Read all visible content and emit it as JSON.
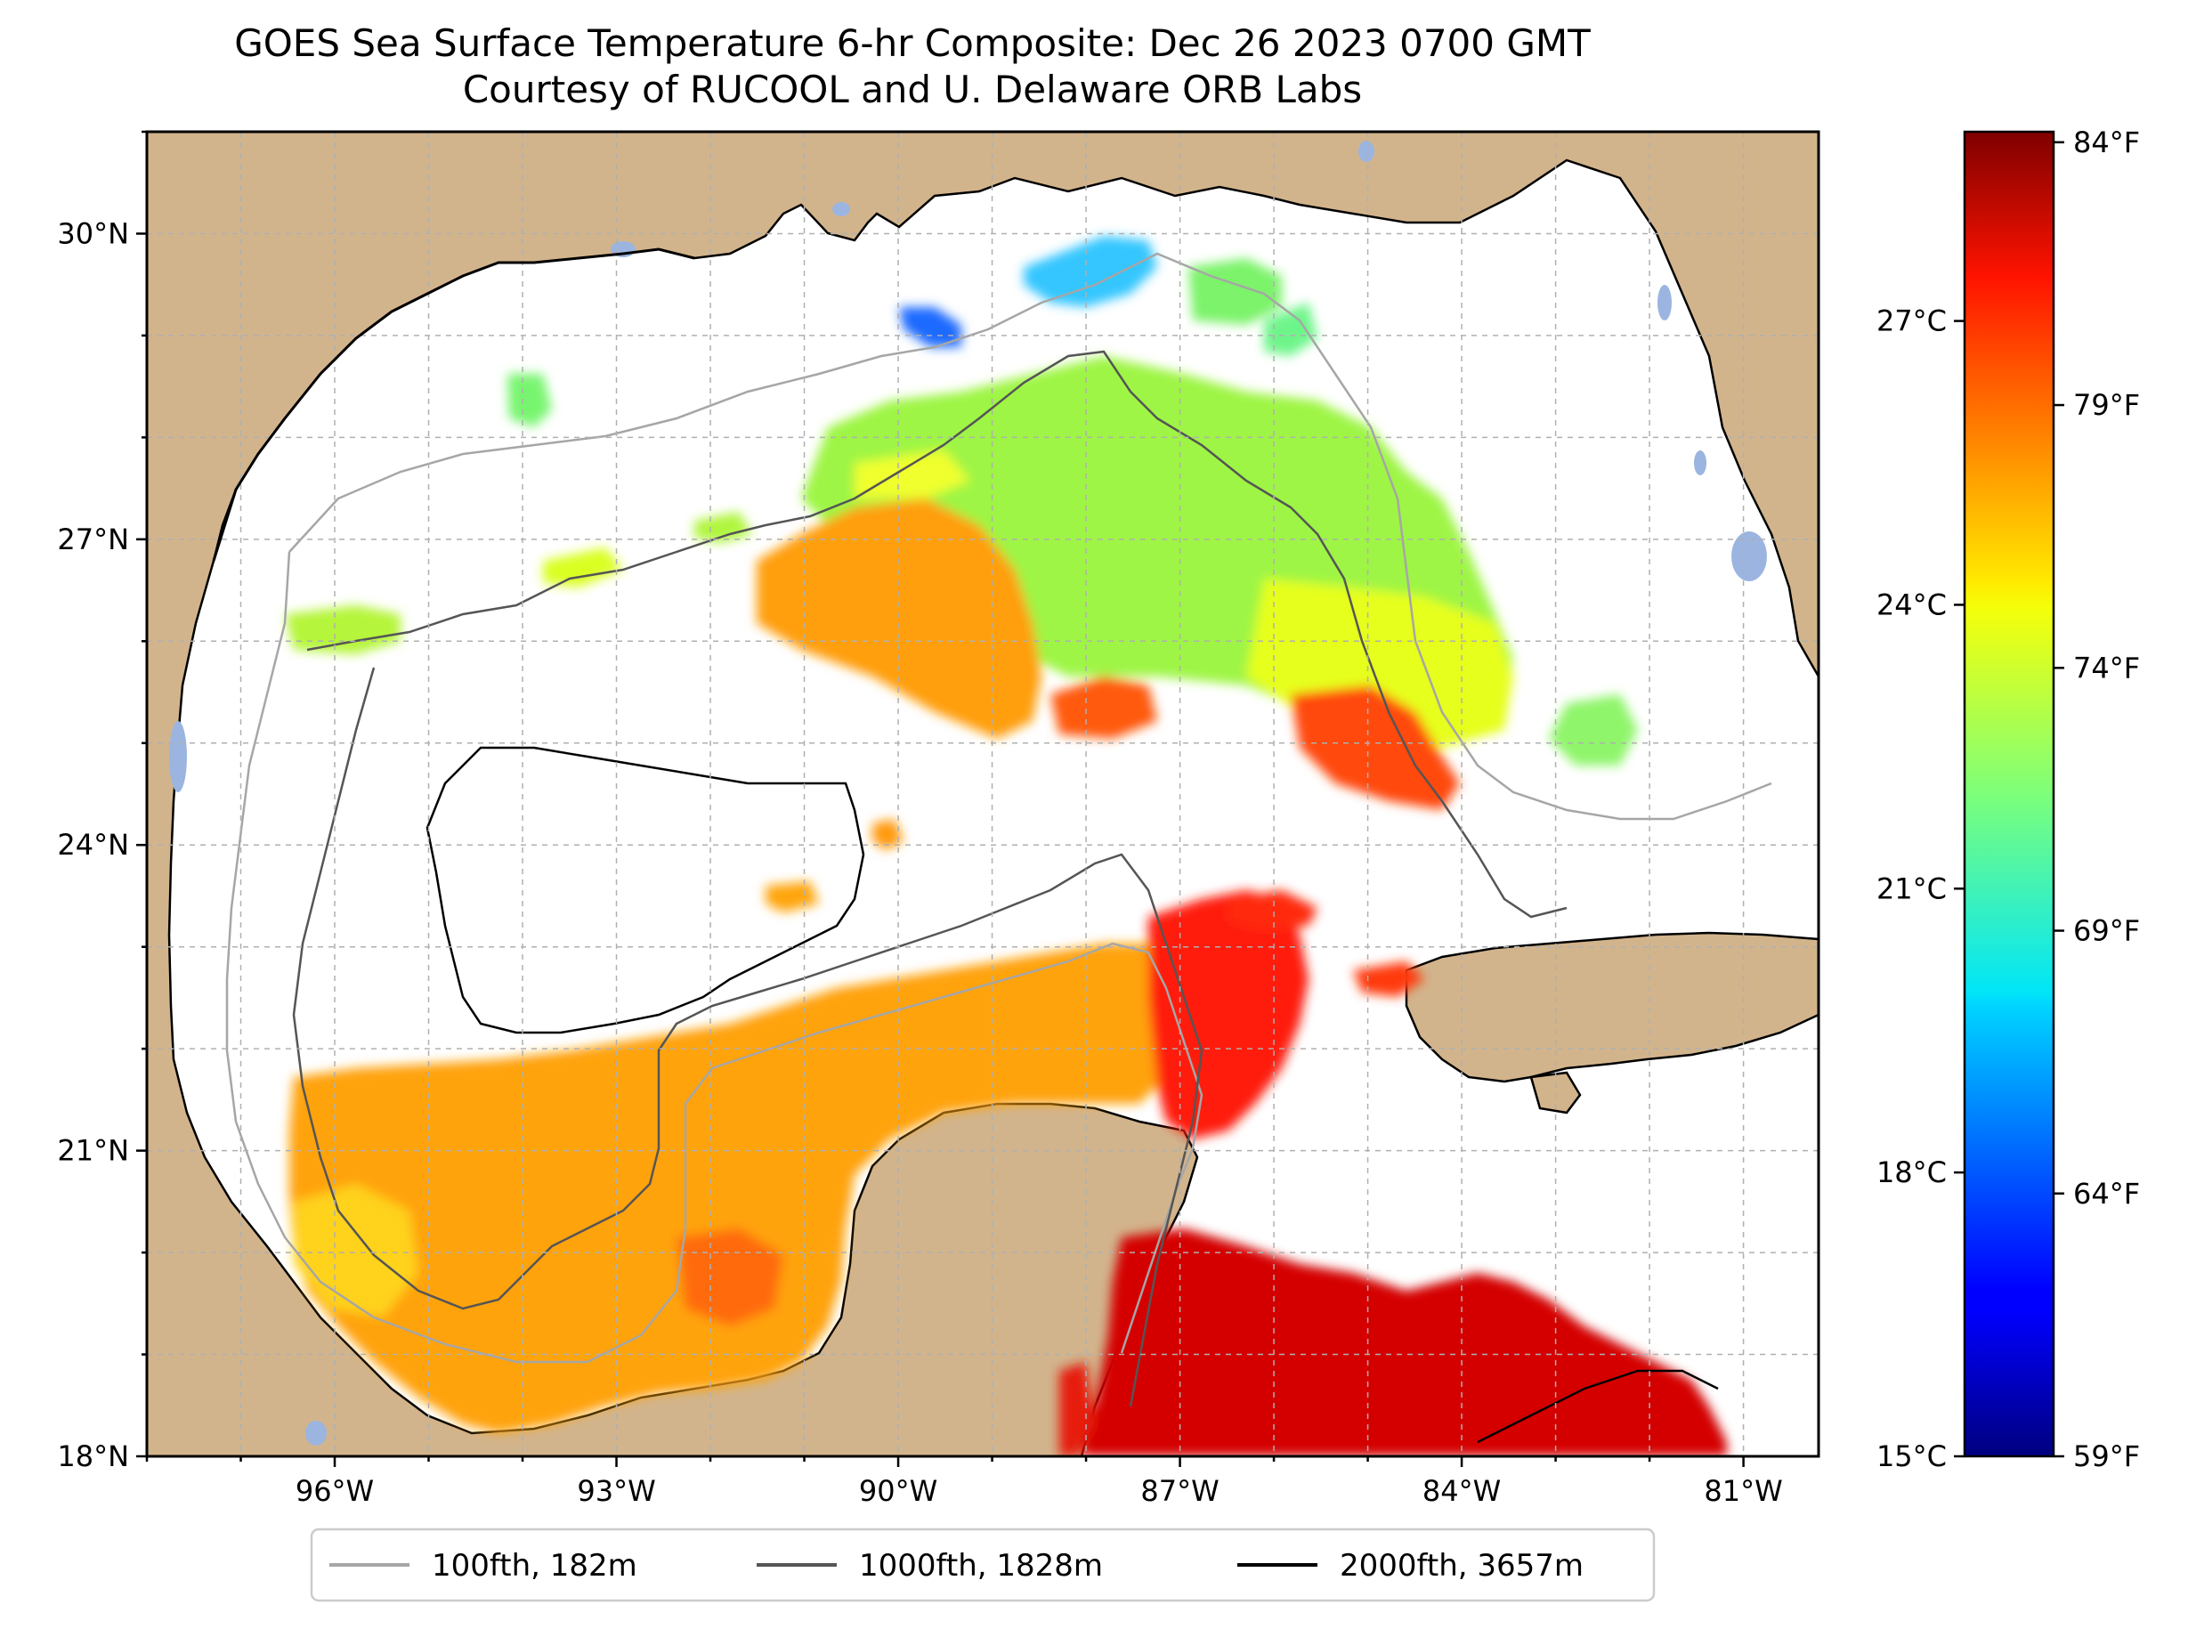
{
  "title": {
    "line1": "GOES Sea Surface Temperature 6-hr Composite: Dec 26 2023 0700 GMT",
    "line2": "Courtesy of RUCOOL and U. Delaware ORB Labs"
  },
  "chart_data": {
    "type": "heatmap",
    "map_extent": {
      "lon": [
        -98,
        -80.2
      ],
      "lat": [
        18,
        31
      ]
    },
    "lat_ticks": [
      {
        "value": 30,
        "label": "30°N"
      },
      {
        "value": 27,
        "label": "27°N"
      },
      {
        "value": 24,
        "label": "24°N"
      },
      {
        "value": 21,
        "label": "21°N"
      },
      {
        "value": 18,
        "label": "18°N"
      }
    ],
    "lon_ticks": [
      {
        "value": -96,
        "label": "96°W"
      },
      {
        "value": -93,
        "label": "93°W"
      },
      {
        "value": -90,
        "label": "90°W"
      },
      {
        "value": -87,
        "label": "87°W"
      },
      {
        "value": -84,
        "label": "84°W"
      },
      {
        "value": -81,
        "label": "81°W"
      }
    ],
    "colorbar": {
      "celsius_range": [
        15,
        29
      ],
      "celsius_ticks": [
        {
          "value": 15,
          "label": "15°C"
        },
        {
          "value": 18,
          "label": "18°C"
        },
        {
          "value": 21,
          "label": "21°C"
        },
        {
          "value": 24,
          "label": "24°C"
        },
        {
          "value": 27,
          "label": "27°C"
        }
      ],
      "fahrenheit_ticks": [
        {
          "value": 59,
          "label": "59°F"
        },
        {
          "value": 64,
          "label": "64°F"
        },
        {
          "value": 69,
          "label": "69°F"
        },
        {
          "value": 74,
          "label": "74°F"
        },
        {
          "value": 79,
          "label": "79°F"
        },
        {
          "value": 84,
          "label": "84°F"
        }
      ],
      "colormap": "jet"
    },
    "legend": {
      "placement": "bottom-center",
      "entries": [
        {
          "label": "100fth, 182m",
          "color": "#a6a6a6"
        },
        {
          "label": "1000fth, 1828m",
          "color": "#555555"
        },
        {
          "label": "2000fth, 3657m",
          "color": "#000000"
        }
      ]
    },
    "land_color": "#d2b48c",
    "lake_color": "#9bb5e0",
    "grid": true
  }
}
